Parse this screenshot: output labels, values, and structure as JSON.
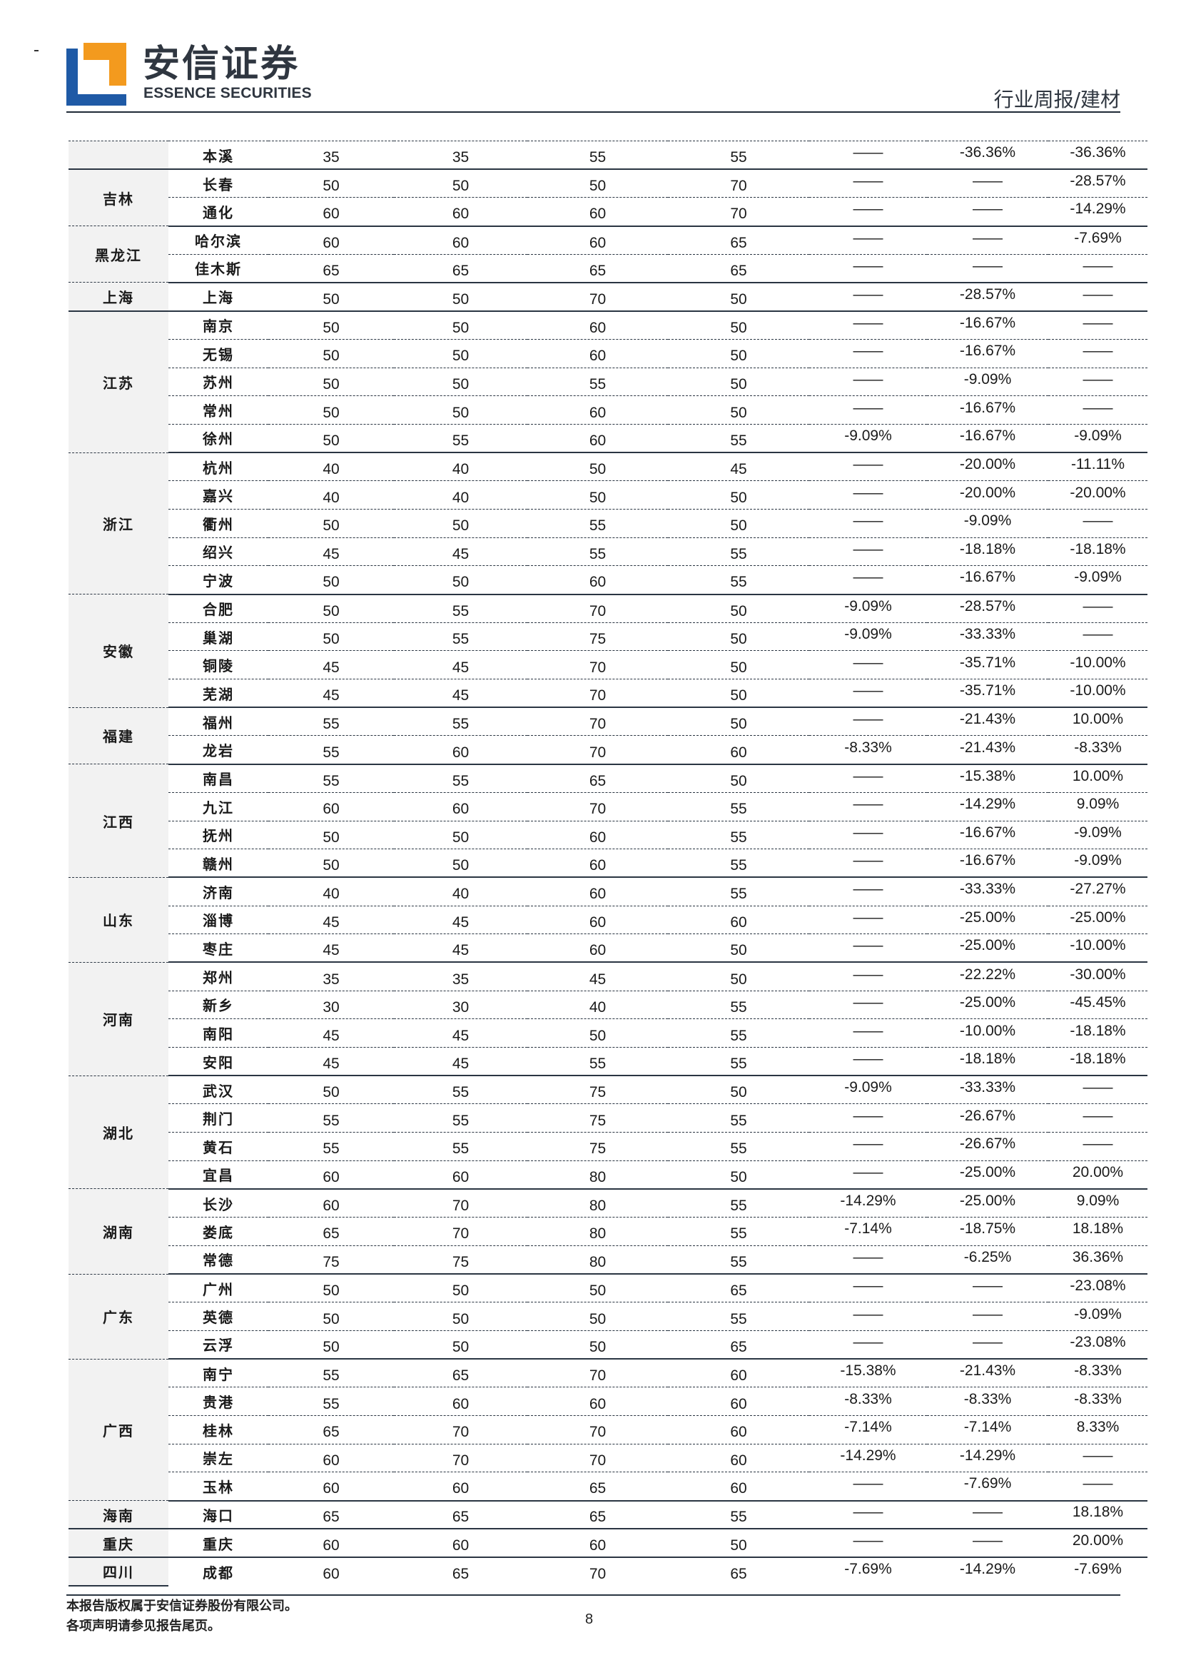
{
  "header": {
    "brand_cn": "安信证券",
    "brand_en": "ESSENCE SECURITIES",
    "report_type": "行业周报/建材",
    "logo_colors": {
      "blue": "#1f5aa6",
      "orange": "#f39a1e"
    }
  },
  "table": {
    "groups": [
      {
        "province": "",
        "rows": [
          [
            "本溪",
            "35",
            "35",
            "55",
            "55",
            "——",
            "-36.36%",
            "-36.36%"
          ]
        ]
      },
      {
        "province": "吉林",
        "rows": [
          [
            "长春",
            "50",
            "50",
            "50",
            "70",
            "——",
            "——",
            "-28.57%"
          ],
          [
            "通化",
            "60",
            "60",
            "60",
            "70",
            "——",
            "——",
            "-14.29%"
          ]
        ]
      },
      {
        "province": "黑龙江",
        "rows": [
          [
            "哈尔滨",
            "60",
            "60",
            "60",
            "65",
            "——",
            "——",
            "-7.69%"
          ],
          [
            "佳木斯",
            "65",
            "65",
            "65",
            "65",
            "——",
            "——",
            "——"
          ]
        ]
      },
      {
        "province": "上海",
        "rows": [
          [
            "上海",
            "50",
            "50",
            "70",
            "50",
            "——",
            "-28.57%",
            "——"
          ]
        ]
      },
      {
        "province": "江苏",
        "rows": [
          [
            "南京",
            "50",
            "50",
            "60",
            "50",
            "——",
            "-16.67%",
            "——"
          ],
          [
            "无锡",
            "50",
            "50",
            "60",
            "50",
            "——",
            "-16.67%",
            "——"
          ],
          [
            "苏州",
            "50",
            "50",
            "55",
            "50",
            "——",
            "-9.09%",
            "——"
          ],
          [
            "常州",
            "50",
            "50",
            "60",
            "50",
            "——",
            "-16.67%",
            "——"
          ],
          [
            "徐州",
            "50",
            "55",
            "60",
            "55",
            "-9.09%",
            "-16.67%",
            "-9.09%"
          ]
        ]
      },
      {
        "province": "浙江",
        "rows": [
          [
            "杭州",
            "40",
            "40",
            "50",
            "45",
            "——",
            "-20.00%",
            "-11.11%"
          ],
          [
            "嘉兴",
            "40",
            "40",
            "50",
            "50",
            "——",
            "-20.00%",
            "-20.00%"
          ],
          [
            "衢州",
            "50",
            "50",
            "55",
            "50",
            "——",
            "-9.09%",
            "——"
          ],
          [
            "绍兴",
            "45",
            "45",
            "55",
            "55",
            "——",
            "-18.18%",
            "-18.18%"
          ],
          [
            "宁波",
            "50",
            "50",
            "60",
            "55",
            "——",
            "-16.67%",
            "-9.09%"
          ]
        ]
      },
      {
        "province": "安徽",
        "rows": [
          [
            "合肥",
            "50",
            "55",
            "70",
            "50",
            "-9.09%",
            "-28.57%",
            "——"
          ],
          [
            "巢湖",
            "50",
            "55",
            "75",
            "50",
            "-9.09%",
            "-33.33%",
            "——"
          ],
          [
            "铜陵",
            "45",
            "45",
            "70",
            "50",
            "——",
            "-35.71%",
            "-10.00%"
          ],
          [
            "芜湖",
            "45",
            "45",
            "70",
            "50",
            "——",
            "-35.71%",
            "-10.00%"
          ]
        ]
      },
      {
        "province": "福建",
        "rows": [
          [
            "福州",
            "55",
            "55",
            "70",
            "50",
            "——",
            "-21.43%",
            "10.00%"
          ],
          [
            "龙岩",
            "55",
            "60",
            "70",
            "60",
            "-8.33%",
            "-21.43%",
            "-8.33%"
          ]
        ]
      },
      {
        "province": "江西",
        "rows": [
          [
            "南昌",
            "55",
            "55",
            "65",
            "50",
            "——",
            "-15.38%",
            "10.00%"
          ],
          [
            "九江",
            "60",
            "60",
            "70",
            "55",
            "——",
            "-14.29%",
            "9.09%"
          ],
          [
            "抚州",
            "50",
            "50",
            "60",
            "55",
            "——",
            "-16.67%",
            "-9.09%"
          ],
          [
            "赣州",
            "50",
            "50",
            "60",
            "55",
            "——",
            "-16.67%",
            "-9.09%"
          ]
        ]
      },
      {
        "province": "山东",
        "rows": [
          [
            "济南",
            "40",
            "40",
            "60",
            "55",
            "——",
            "-33.33%",
            "-27.27%"
          ],
          [
            "淄博",
            "45",
            "45",
            "60",
            "60",
            "——",
            "-25.00%",
            "-25.00%"
          ],
          [
            "枣庄",
            "45",
            "45",
            "60",
            "50",
            "——",
            "-25.00%",
            "-10.00%"
          ]
        ]
      },
      {
        "province": "河南",
        "rows": [
          [
            "郑州",
            "35",
            "35",
            "45",
            "50",
            "——",
            "-22.22%",
            "-30.00%"
          ],
          [
            "新乡",
            "30",
            "30",
            "40",
            "55",
            "——",
            "-25.00%",
            "-45.45%"
          ],
          [
            "南阳",
            "45",
            "45",
            "50",
            "55",
            "——",
            "-10.00%",
            "-18.18%"
          ],
          [
            "安阳",
            "45",
            "45",
            "55",
            "55",
            "——",
            "-18.18%",
            "-18.18%"
          ]
        ]
      },
      {
        "province": "湖北",
        "rows": [
          [
            "武汉",
            "50",
            "55",
            "75",
            "50",
            "-9.09%",
            "-33.33%",
            "——"
          ],
          [
            "荆门",
            "55",
            "55",
            "75",
            "55",
            "——",
            "-26.67%",
            "——"
          ],
          [
            "黄石",
            "55",
            "55",
            "75",
            "55",
            "——",
            "-26.67%",
            "——"
          ],
          [
            "宜昌",
            "60",
            "60",
            "80",
            "50",
            "——",
            "-25.00%",
            "20.00%"
          ]
        ]
      },
      {
        "province": "湖南",
        "rows": [
          [
            "长沙",
            "60",
            "70",
            "80",
            "55",
            "-14.29%",
            "-25.00%",
            "9.09%"
          ],
          [
            "娄底",
            "65",
            "70",
            "80",
            "55",
            "-7.14%",
            "-18.75%",
            "18.18%"
          ],
          [
            "常德",
            "75",
            "75",
            "80",
            "55",
            "——",
            "-6.25%",
            "36.36%"
          ]
        ]
      },
      {
        "province": "广东",
        "rows": [
          [
            "广州",
            "50",
            "50",
            "50",
            "65",
            "——",
            "——",
            "-23.08%"
          ],
          [
            "英德",
            "50",
            "50",
            "50",
            "55",
            "——",
            "——",
            "-9.09%"
          ],
          [
            "云浮",
            "50",
            "50",
            "50",
            "65",
            "——",
            "——",
            "-23.08%"
          ]
        ]
      },
      {
        "province": "广西",
        "rows": [
          [
            "南宁",
            "55",
            "65",
            "70",
            "60",
            "-15.38%",
            "-21.43%",
            "-8.33%"
          ],
          [
            "贵港",
            "55",
            "60",
            "60",
            "60",
            "-8.33%",
            "-8.33%",
            "-8.33%"
          ],
          [
            "桂林",
            "65",
            "70",
            "70",
            "60",
            "-7.14%",
            "-7.14%",
            "8.33%"
          ],
          [
            "崇左",
            "60",
            "70",
            "70",
            "60",
            "-14.29%",
            "-14.29%",
            "——"
          ],
          [
            "玉林",
            "60",
            "60",
            "65",
            "60",
            "——",
            "-7.69%",
            "——"
          ]
        ]
      },
      {
        "province": "海南",
        "rows": [
          [
            "海口",
            "65",
            "65",
            "65",
            "55",
            "——",
            "——",
            "18.18%"
          ]
        ]
      },
      {
        "province": "重庆",
        "rows": [
          [
            "重庆",
            "60",
            "60",
            "60",
            "50",
            "——",
            "——",
            "20.00%"
          ]
        ]
      },
      {
        "province": "四川",
        "rows": [
          [
            "成都",
            "60",
            "65",
            "70",
            "65",
            "-7.69%",
            "-14.29%",
            "-7.69%"
          ]
        ]
      }
    ]
  },
  "footer": {
    "page_number": "8",
    "copyright": "本报告版权属于安信证券股份有限公司。",
    "disclaimer": "各项声明请参见报告尾页。"
  }
}
